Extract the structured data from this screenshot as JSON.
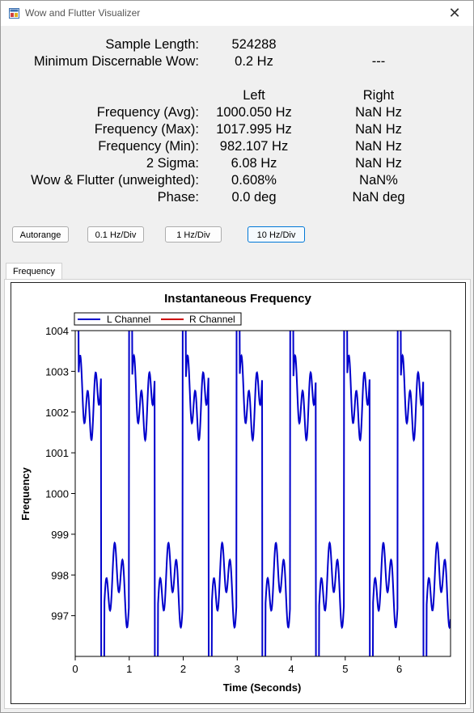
{
  "window": {
    "title": "Wow and Flutter Visualizer",
    "close_glyph": "✕",
    "icon": "app-icon"
  },
  "stats": {
    "sample_length": {
      "label": "Sample Length:",
      "value": "524288"
    },
    "min_wow": {
      "label": "Minimum Discernable Wow:",
      "value": "0.2 Hz",
      "right": "---"
    },
    "header_left": "Left",
    "header_right": "Right",
    "rows": [
      {
        "label": "Frequency (Avg):",
        "left": "1000.050 Hz",
        "right": "NaN Hz"
      },
      {
        "label": "Frequency (Max):",
        "left": "1017.995 Hz",
        "right": "NaN Hz"
      },
      {
        "label": "Frequency (Min):",
        "left": "982.107 Hz",
        "right": "NaN Hz"
      },
      {
        "label": "2 Sigma:",
        "left": "6.08 Hz",
        "right": "NaN Hz"
      },
      {
        "label": "Wow & Flutter (unweighted):",
        "left": "0.608%",
        "right": "NaN%"
      },
      {
        "label": "Phase:",
        "left": "0.0 deg",
        "right": "NaN deg"
      }
    ]
  },
  "buttons": [
    {
      "label": "Autorange"
    },
    {
      "label": "0.1 Hz/Div"
    },
    {
      "label": "1 Hz/Div"
    },
    {
      "label": "10 Hz/Div",
      "active": true
    }
  ],
  "tab": {
    "label": "Frequency"
  },
  "chart_data": {
    "type": "line",
    "title": "Instantaneous Frequency",
    "xlabel": "Time (Seconds)",
    "ylabel": "Frequency",
    "xlim": [
      0,
      6.95
    ],
    "ylim": [
      996,
      1004
    ],
    "xticks": [
      0,
      1,
      2,
      3,
      4,
      5,
      6
    ],
    "yticks": [
      997,
      998,
      999,
      1000,
      1001,
      1002,
      1003,
      1004
    ],
    "grid": false,
    "legend": "top-left",
    "series": [
      {
        "name": "L Channel",
        "color": "#0000cc",
        "period": 0.995,
        "high_band_mean": 1002.35,
        "low_band_mean": 997.75,
        "flutter_amplitude": 0.6
      },
      {
        "name": "R Channel",
        "color": "#cc0000",
        "values": []
      }
    ]
  }
}
